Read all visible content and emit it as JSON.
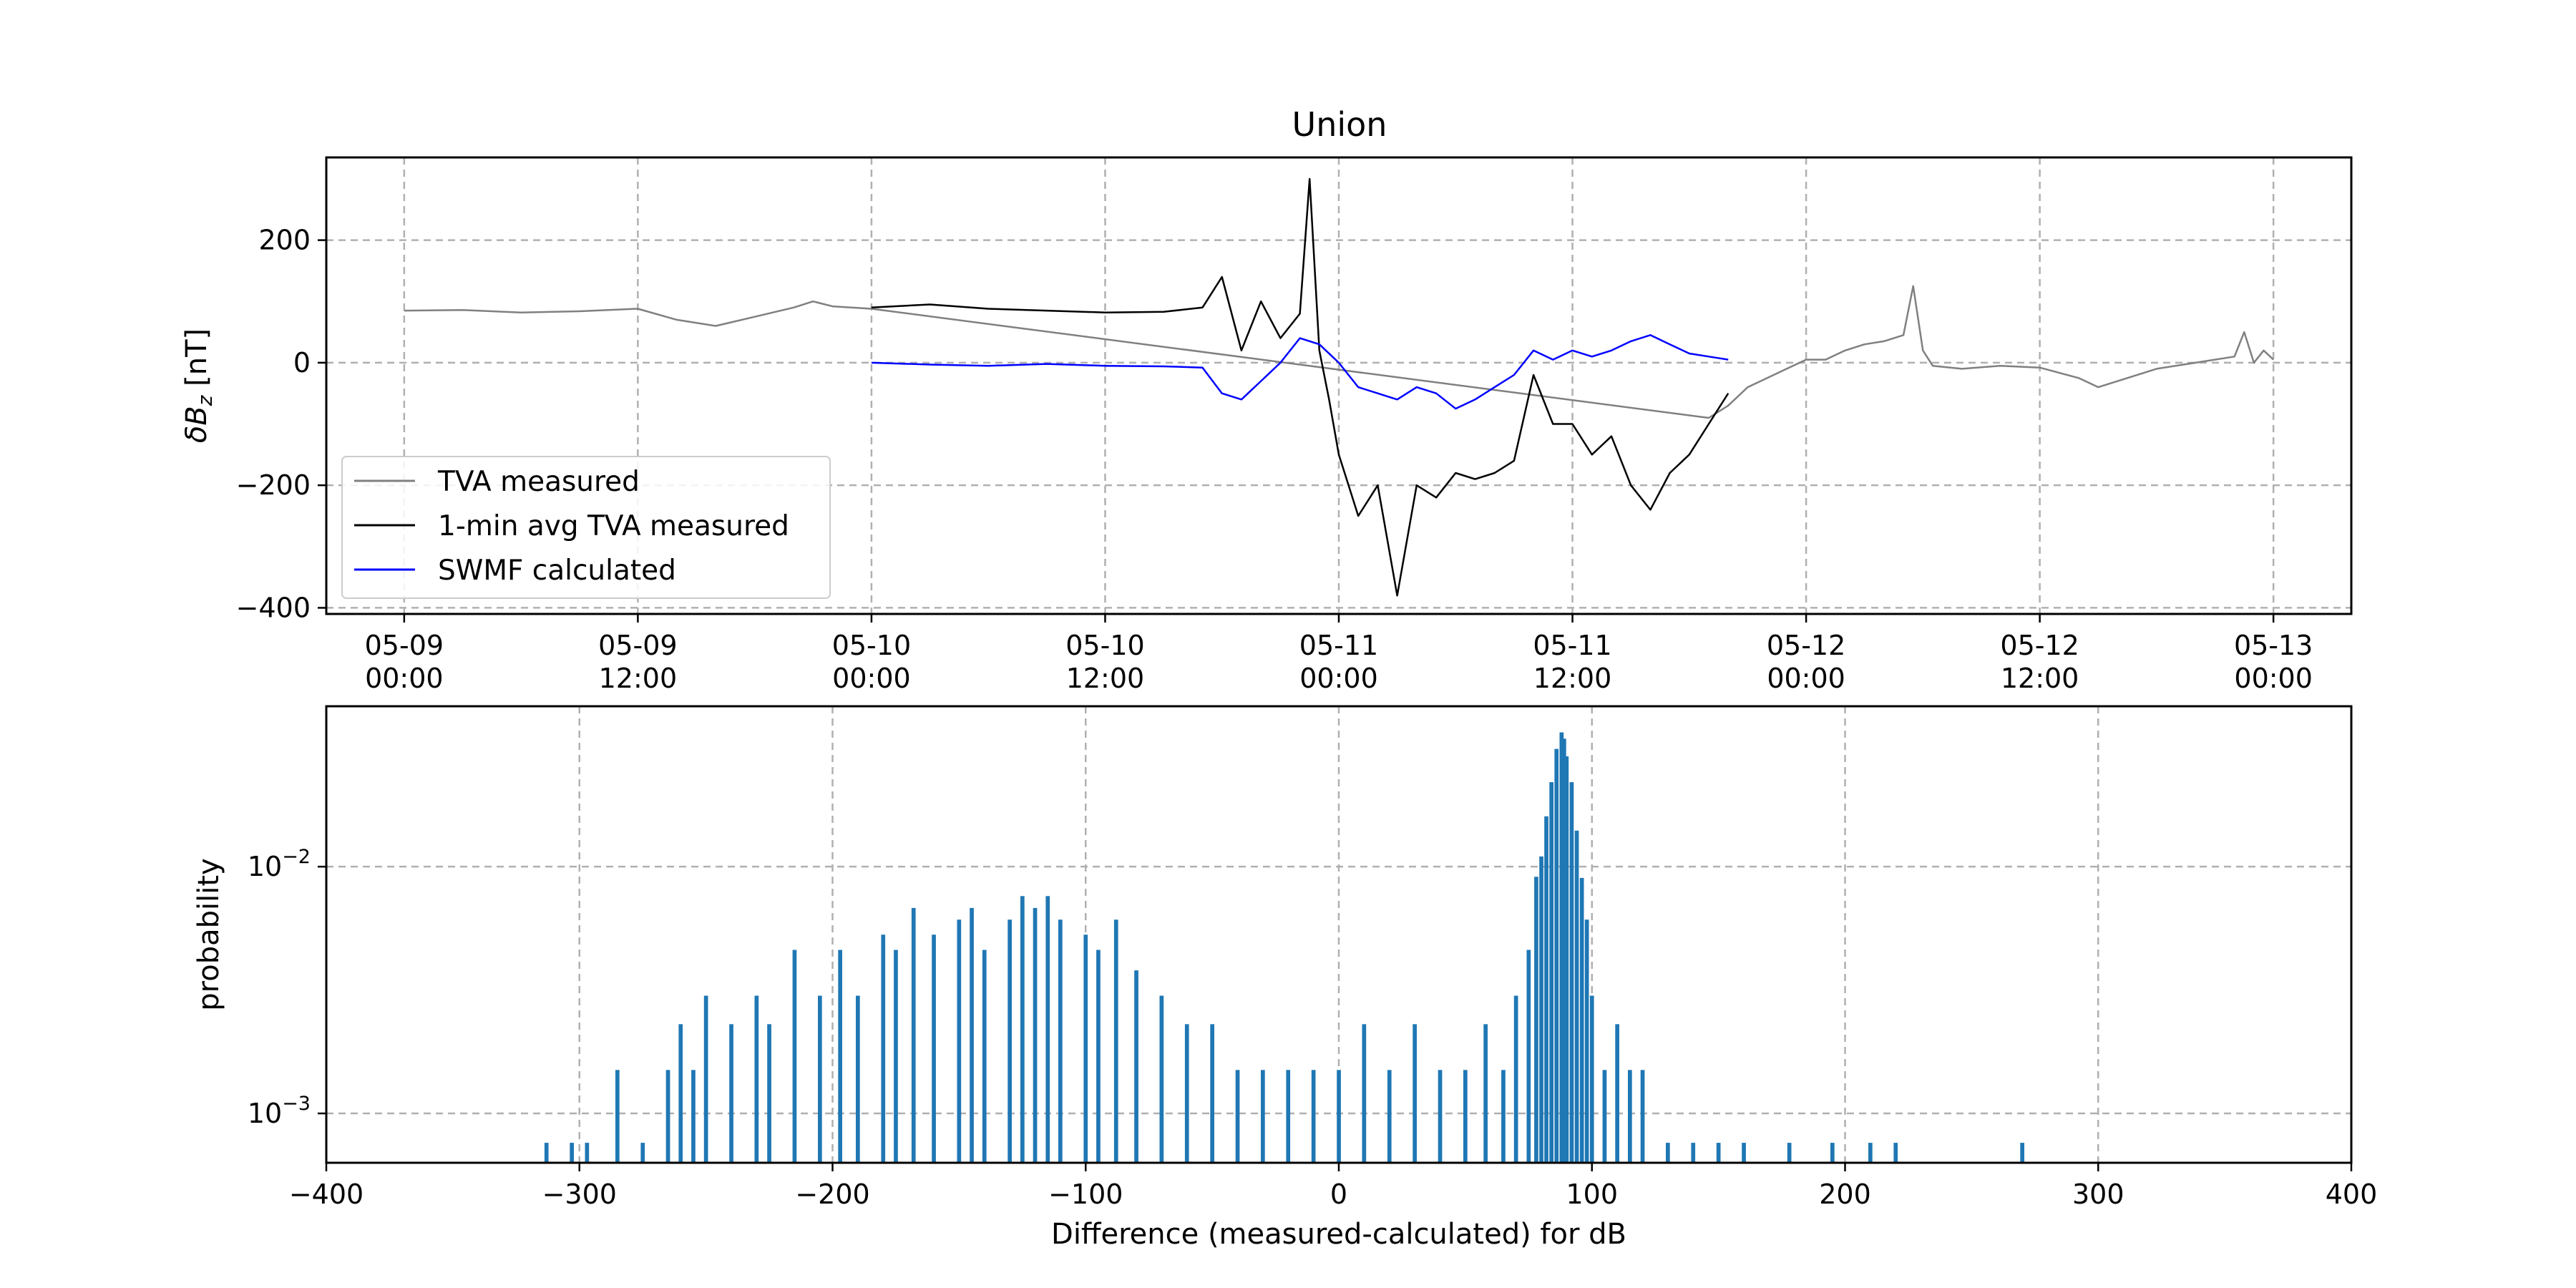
{
  "figure": {
    "title": "Union"
  },
  "chart_data": [
    {
      "type": "line",
      "title": "Union",
      "xlabel": "",
      "ylabel": "δB_z [nT]",
      "ylabel_parts": {
        "prefix": "δB",
        "subscript": "z",
        "suffix": " [nT]"
      },
      "x_type": "datetime",
      "xlim": [
        "2024-05-08T20:00",
        "2024-05-13T04:00"
      ],
      "ylim": [
        -410,
        335
      ],
      "grid": true,
      "legend_position": "lower-left",
      "x_ticks": [
        {
          "value": "2024-05-09T00:00",
          "line1": "05-09",
          "line2": "00:00"
        },
        {
          "value": "2024-05-09T12:00",
          "line1": "05-09",
          "line2": "12:00"
        },
        {
          "value": "2024-05-10T00:00",
          "line1": "05-10",
          "line2": "00:00"
        },
        {
          "value": "2024-05-10T12:00",
          "line1": "05-10",
          "line2": "12:00"
        },
        {
          "value": "2024-05-11T00:00",
          "line1": "05-11",
          "line2": "00:00"
        },
        {
          "value": "2024-05-11T12:00",
          "line1": "05-11",
          "line2": "12:00"
        },
        {
          "value": "2024-05-12T00:00",
          "line1": "05-12",
          "line2": "00:00"
        },
        {
          "value": "2024-05-12T12:00",
          "line1": "05-12",
          "line2": "12:00"
        },
        {
          "value": "2024-05-13T00:00",
          "line1": "05-13",
          "line2": "00:00"
        }
      ],
      "y_ticks": [
        {
          "value": 200,
          "label": "200"
        },
        {
          "value": 0,
          "label": "0"
        },
        {
          "value": -200,
          "label": "−200"
        },
        {
          "value": -400,
          "label": "−400"
        }
      ],
      "series": [
        {
          "name": "TVA measured",
          "color": "#808080",
          "x": [
            "2024-05-09T00:00",
            "2024-05-09T03:00",
            "2024-05-09T06:00",
            "2024-05-09T09:00",
            "2024-05-09T12:00",
            "2024-05-09T14:00",
            "2024-05-09T16:00",
            "2024-05-09T18:00",
            "2024-05-09T20:00",
            "2024-05-09T21:00",
            "2024-05-09T22:00",
            "2024-05-10T00:00",
            "2024-05-11T19:00",
            "2024-05-11T20:00",
            "2024-05-11T21:00",
            "2024-05-11T22:00",
            "2024-05-11T23:00",
            "2024-05-12T00:00",
            "2024-05-12T01:00",
            "2024-05-12T02:00",
            "2024-05-12T03:00",
            "2024-05-12T04:00",
            "2024-05-12T05:00",
            "2024-05-12T05:30",
            "2024-05-12T06:00",
            "2024-05-12T06:30",
            "2024-05-12T08:00",
            "2024-05-12T10:00",
            "2024-05-12T12:00",
            "2024-05-12T14:00",
            "2024-05-12T15:00",
            "2024-05-12T16:00",
            "2024-05-12T18:00",
            "2024-05-12T20:00",
            "2024-05-12T22:00",
            "2024-05-12T22:30",
            "2024-05-12T23:00",
            "2024-05-12T23:30",
            "2024-05-13T00:00"
          ],
          "y": [
            85,
            86,
            82,
            84,
            88,
            70,
            60,
            75,
            90,
            100,
            92,
            88,
            -90,
            -70,
            -40,
            -25,
            -10,
            5,
            5,
            20,
            30,
            35,
            45,
            125,
            20,
            -5,
            -10,
            -5,
            -8,
            -25,
            -40,
            -30,
            -10,
            0,
            10,
            50,
            0,
            20,
            5
          ]
        },
        {
          "name": "1-min avg TVA measured",
          "color": "#000000",
          "x": [
            "2024-05-10T00:00",
            "2024-05-10T03:00",
            "2024-05-10T06:00",
            "2024-05-10T09:00",
            "2024-05-10T12:00",
            "2024-05-10T15:00",
            "2024-05-10T17:00",
            "2024-05-10T18:00",
            "2024-05-10T19:00",
            "2024-05-10T20:00",
            "2024-05-10T21:00",
            "2024-05-10T22:00",
            "2024-05-10T22:30",
            "2024-05-10T23:00",
            "2024-05-10T23:30",
            "2024-05-11T00:00",
            "2024-05-11T01:00",
            "2024-05-11T02:00",
            "2024-05-11T03:00",
            "2024-05-11T04:00",
            "2024-05-11T05:00",
            "2024-05-11T06:00",
            "2024-05-11T07:00",
            "2024-05-11T08:00",
            "2024-05-11T09:00",
            "2024-05-11T10:00",
            "2024-05-11T11:00",
            "2024-05-11T12:00",
            "2024-05-11T13:00",
            "2024-05-11T14:00",
            "2024-05-11T15:00",
            "2024-05-11T16:00",
            "2024-05-11T17:00",
            "2024-05-11T18:00",
            "2024-05-11T19:00",
            "2024-05-11T20:00"
          ],
          "y": [
            90,
            95,
            88,
            85,
            82,
            83,
            90,
            140,
            20,
            100,
            40,
            80,
            300,
            20,
            -60,
            -150,
            -250,
            -200,
            -380,
            -200,
            -220,
            -180,
            -190,
            -180,
            -160,
            -20,
            -100,
            -100,
            -150,
            -120,
            -200,
            -240,
            -180,
            -150,
            -100,
            -50
          ]
        },
        {
          "name": "SWMF calculated",
          "color": "#0000ff",
          "x": [
            "2024-05-10T00:00",
            "2024-05-10T03:00",
            "2024-05-10T06:00",
            "2024-05-10T09:00",
            "2024-05-10T12:00",
            "2024-05-10T15:00",
            "2024-05-10T17:00",
            "2024-05-10T18:00",
            "2024-05-10T19:00",
            "2024-05-10T20:00",
            "2024-05-10T21:00",
            "2024-05-10T22:00",
            "2024-05-10T23:00",
            "2024-05-11T00:00",
            "2024-05-11T01:00",
            "2024-05-11T02:00",
            "2024-05-11T03:00",
            "2024-05-11T04:00",
            "2024-05-11T05:00",
            "2024-05-11T06:00",
            "2024-05-11T07:00",
            "2024-05-11T08:00",
            "2024-05-11T09:00",
            "2024-05-11T10:00",
            "2024-05-11T11:00",
            "2024-05-11T12:00",
            "2024-05-11T13:00",
            "2024-05-11T14:00",
            "2024-05-11T15:00",
            "2024-05-11T16:00",
            "2024-05-11T17:00",
            "2024-05-11T18:00",
            "2024-05-11T19:00",
            "2024-05-11T20:00"
          ],
          "y": [
            0,
            -3,
            -5,
            -2,
            -5,
            -6,
            -8,
            -50,
            -60,
            -30,
            0,
            40,
            30,
            0,
            -40,
            -50,
            -60,
            -40,
            -50,
            -75,
            -60,
            -40,
            -20,
            20,
            5,
            20,
            10,
            20,
            35,
            45,
            30,
            15,
            10,
            5
          ]
        }
      ]
    },
    {
      "type": "bar",
      "title": "",
      "xlabel": "Difference (measured-calculated) for dB",
      "ylabel": "probability",
      "xlim": [
        -400,
        400
      ],
      "ylim_log10": [
        -3.2,
        -1.35
      ],
      "y_scale": "log",
      "grid": true,
      "bar_color": "#1f77b4",
      "x_ticks": [
        {
          "value": -400,
          "label": "−400"
        },
        {
          "value": -300,
          "label": "−300"
        },
        {
          "value": -200,
          "label": "−200"
        },
        {
          "value": -100,
          "label": "−100"
        },
        {
          "value": 0,
          "label": "0"
        },
        {
          "value": 100,
          "label": "100"
        },
        {
          "value": 200,
          "label": "200"
        },
        {
          "value": 300,
          "label": "300"
        },
        {
          "value": 400,
          "label": "400"
        }
      ],
      "y_ticks": [
        {
          "value": 0.01,
          "base": "10",
          "exponent": "−2"
        },
        {
          "value": 0.001,
          "base": "10",
          "exponent": "−3"
        }
      ],
      "bins": [
        {
          "x": -313,
          "p": 0.00076
        },
        {
          "x": -303,
          "p": 0.00076
        },
        {
          "x": -297,
          "p": 0.00076
        },
        {
          "x": -285,
          "p": 0.0015
        },
        {
          "x": -275,
          "p": 0.00076
        },
        {
          "x": -265,
          "p": 0.0015
        },
        {
          "x": -260,
          "p": 0.0023
        },
        {
          "x": -255,
          "p": 0.0015
        },
        {
          "x": -250,
          "p": 0.003
        },
        {
          "x": -240,
          "p": 0.0023
        },
        {
          "x": -230,
          "p": 0.003
        },
        {
          "x": -225,
          "p": 0.0023
        },
        {
          "x": -215,
          "p": 0.0046
        },
        {
          "x": -205,
          "p": 0.003
        },
        {
          "x": -197,
          "p": 0.0046
        },
        {
          "x": -190,
          "p": 0.003
        },
        {
          "x": -180,
          "p": 0.0053
        },
        {
          "x": -175,
          "p": 0.0046
        },
        {
          "x": -168,
          "p": 0.0068
        },
        {
          "x": -160,
          "p": 0.0053
        },
        {
          "x": -150,
          "p": 0.0061
        },
        {
          "x": -145,
          "p": 0.0068
        },
        {
          "x": -140,
          "p": 0.0046
        },
        {
          "x": -130,
          "p": 0.0061
        },
        {
          "x": -125,
          "p": 0.0076
        },
        {
          "x": -120,
          "p": 0.0068
        },
        {
          "x": -115,
          "p": 0.0076
        },
        {
          "x": -110,
          "p": 0.0061
        },
        {
          "x": -100,
          "p": 0.0053
        },
        {
          "x": -95,
          "p": 0.0046
        },
        {
          "x": -88,
          "p": 0.0061
        },
        {
          "x": -80,
          "p": 0.0038
        },
        {
          "x": -70,
          "p": 0.003
        },
        {
          "x": -60,
          "p": 0.0023
        },
        {
          "x": -50,
          "p": 0.0023
        },
        {
          "x": -40,
          "p": 0.0015
        },
        {
          "x": -30,
          "p": 0.0015
        },
        {
          "x": -20,
          "p": 0.0015
        },
        {
          "x": -10,
          "p": 0.0015
        },
        {
          "x": 0,
          "p": 0.0015
        },
        {
          "x": 10,
          "p": 0.0023
        },
        {
          "x": 20,
          "p": 0.0015
        },
        {
          "x": 30,
          "p": 0.0023
        },
        {
          "x": 40,
          "p": 0.0015
        },
        {
          "x": 50,
          "p": 0.0015
        },
        {
          "x": 58,
          "p": 0.0023
        },
        {
          "x": 65,
          "p": 0.0015
        },
        {
          "x": 70,
          "p": 0.003
        },
        {
          "x": 75,
          "p": 0.0046
        },
        {
          "x": 78,
          "p": 0.0091
        },
        {
          "x": 80,
          "p": 0.011
        },
        {
          "x": 82,
          "p": 0.016
        },
        {
          "x": 84,
          "p": 0.022
        },
        {
          "x": 86,
          "p": 0.03
        },
        {
          "x": 88,
          "p": 0.035
        },
        {
          "x": 89,
          "p": 0.033
        },
        {
          "x": 90,
          "p": 0.028
        },
        {
          "x": 92,
          "p": 0.022
        },
        {
          "x": 94,
          "p": 0.014
        },
        {
          "x": 96,
          "p": 0.009
        },
        {
          "x": 98,
          "p": 0.0061
        },
        {
          "x": 100,
          "p": 0.003
        },
        {
          "x": 105,
          "p": 0.0015
        },
        {
          "x": 110,
          "p": 0.0023
        },
        {
          "x": 115,
          "p": 0.0015
        },
        {
          "x": 120,
          "p": 0.0015
        },
        {
          "x": 130,
          "p": 0.00076
        },
        {
          "x": 140,
          "p": 0.00076
        },
        {
          "x": 150,
          "p": 0.00076
        },
        {
          "x": 160,
          "p": 0.00076
        },
        {
          "x": 178,
          "p": 0.00076
        },
        {
          "x": 195,
          "p": 0.00076
        },
        {
          "x": 210,
          "p": 0.00076
        },
        {
          "x": 220,
          "p": 0.00076
        },
        {
          "x": 270,
          "p": 0.00076
        }
      ]
    }
  ]
}
